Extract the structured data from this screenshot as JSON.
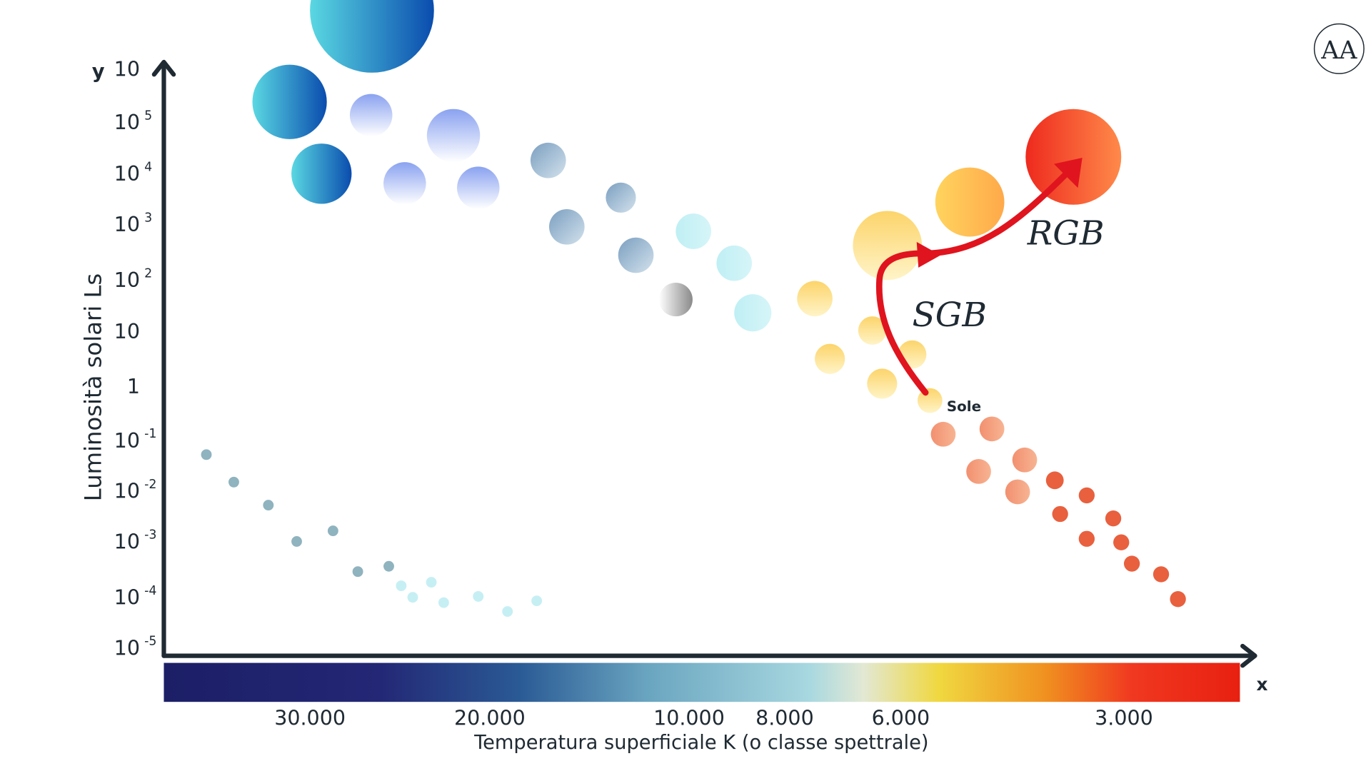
{
  "axes": {
    "y_label": "y",
    "x_label": "x",
    "y_title": "Luminosità solari Ls",
    "x_title": "Temperatura superficiale K (o classe spettrale)"
  },
  "y_ticks": [
    {
      "base": "10"
    },
    {
      "base": "10",
      "exp": "5"
    },
    {
      "base": "10",
      "exp": "4"
    },
    {
      "base": "10",
      "exp": "3"
    },
    {
      "base": "10",
      "exp": "2"
    },
    {
      "base": "10"
    },
    {
      "base": "1"
    },
    {
      "base": "10",
      "exp": "-1"
    },
    {
      "base": "10",
      "exp": "-2"
    },
    {
      "base": "10",
      "exp": "-3"
    },
    {
      "base": "10",
      "exp": "-4"
    },
    {
      "base": "10",
      "exp": "-5"
    }
  ],
  "x_ticks": [
    "30.000",
    "20.000",
    "10.000",
    "8.000",
    "6.000",
    "3.000"
  ],
  "labels": {
    "sun": "Sole",
    "sgb": "SGB",
    "rgb": "RGB"
  },
  "logo": "AA"
}
